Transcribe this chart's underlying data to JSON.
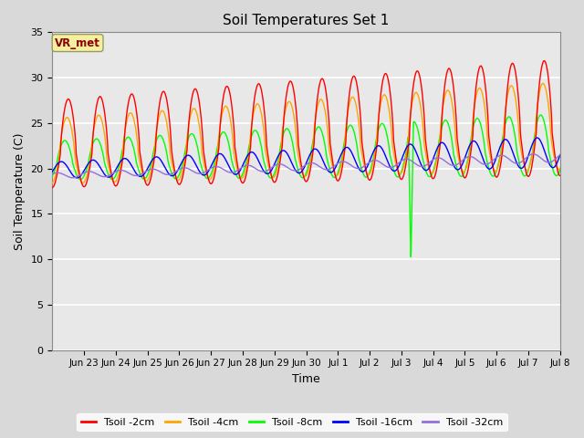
{
  "title": "Soil Temperatures Set 1",
  "xlabel": "Time",
  "ylabel": "Soil Temperature (C)",
  "ylim": [
    0,
    35
  ],
  "annotation": "VR_met",
  "series_colors": [
    "red",
    "orange",
    "lime",
    "blue",
    "mediumpurple"
  ],
  "series_labels": [
    "Tsoil -2cm",
    "Tsoil -4cm",
    "Tsoil -8cm",
    "Tsoil -16cm",
    "Tsoil -32cm"
  ],
  "bg_color": "#d9d9d9",
  "plot_bg_color": "#e8e8e8",
  "tick_labels": [
    "Jun 23",
    "Jun 24",
    "Jun 25",
    "Jun 26",
    "Jun 27",
    "Jun 28",
    "Jun 29",
    "Jun 30",
    "Jul 1",
    "Jul 2",
    "Jul 3",
    "Jul 4",
    "Jul 5",
    "Jul 6",
    "Jul 7",
    "Jul 8"
  ],
  "anomaly_day": 11.3,
  "anomaly_min": 9.8
}
